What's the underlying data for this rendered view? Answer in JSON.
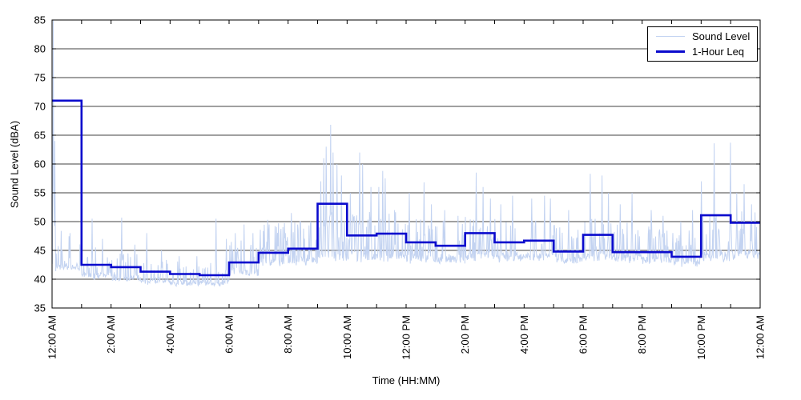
{
  "chart_data": {
    "type": "line",
    "title": "",
    "xlabel": "Time (HH:MM)",
    "ylabel": "Sound Level (dBA)",
    "ylim": [
      35,
      85
    ],
    "yticks": [
      35,
      40,
      45,
      50,
      55,
      60,
      65,
      70,
      75,
      80,
      85
    ],
    "x_span_hours": 24,
    "x_minor_tick_every_hours": 1,
    "x_major_label_every_hours": 2,
    "x_tick_labels": [
      "12:00 AM",
      "2:00 AM",
      "4:00 AM",
      "6:00 AM",
      "8:00 AM",
      "10:00 AM",
      "12:00 PM",
      "2:00 PM",
      "4:00 PM",
      "6:00 PM",
      "8:00 PM",
      "10:00 PM",
      "12:00 AM"
    ],
    "grid": "horizontal-only",
    "grid_color": "#000000",
    "axis_color": "#000000",
    "legend": {
      "position": "top-right",
      "border": true
    },
    "series": [
      {
        "name": "Sound Level",
        "type": "noisy-minute-trace",
        "color": "#c3d3f1",
        "points_per_hour": 60,
        "approx_hourly_floor_dba": [
          41.3,
          39.8,
          39.4,
          39.0,
          38.7,
          38.7,
          40.3,
          41.8,
          42.3,
          42.8,
          42.8,
          42.8,
          42.6,
          42.4,
          42.8,
          42.8,
          42.8,
          42.3,
          42.8,
          42.6,
          42.4,
          42.0,
          42.8,
          43.2
        ],
        "approx_hourly_spread_dba": [
          2.6,
          2.2,
          2.0,
          1.8,
          1.6,
          1.6,
          2.6,
          3.0,
          3.0,
          3.4,
          3.4,
          3.4,
          3.0,
          3.0,
          3.2,
          3.0,
          3.2,
          2.8,
          3.0,
          3.0,
          2.8,
          2.6,
          3.4,
          3.4
        ],
        "notable_peaks_hour_dba": [
          [
            0.03,
            85
          ],
          [
            0.08,
            64
          ],
          [
            0.6,
            48
          ],
          [
            1.35,
            50.5
          ],
          [
            1.7,
            47
          ],
          [
            2.35,
            50.7
          ],
          [
            2.8,
            46
          ],
          [
            3.2,
            48
          ],
          [
            3.7,
            45
          ],
          [
            4.3,
            44
          ],
          [
            4.9,
            44
          ],
          [
            5.55,
            50.5
          ],
          [
            5.9,
            47
          ],
          [
            6.2,
            48
          ],
          [
            6.5,
            49.5
          ],
          [
            6.8,
            48
          ],
          [
            7.3,
            50.3
          ],
          [
            7.6,
            49
          ],
          [
            7.9,
            48
          ],
          [
            8.1,
            51.5
          ],
          [
            8.4,
            50
          ],
          [
            8.75,
            50
          ],
          [
            9.1,
            57
          ],
          [
            9.2,
            61
          ],
          [
            9.28,
            63
          ],
          [
            9.43,
            66.8
          ],
          [
            9.52,
            62
          ],
          [
            9.65,
            60
          ],
          [
            9.8,
            58
          ],
          [
            10.1,
            55
          ],
          [
            10.42,
            62
          ],
          [
            10.52,
            60
          ],
          [
            10.8,
            56
          ],
          [
            11.07,
            56
          ],
          [
            11.2,
            58.8
          ],
          [
            11.28,
            57.5
          ],
          [
            11.6,
            52
          ],
          [
            12.1,
            55
          ],
          [
            12.6,
            56.8
          ],
          [
            12.85,
            53
          ],
          [
            13.3,
            52
          ],
          [
            13.75,
            51
          ],
          [
            14.37,
            58.5
          ],
          [
            14.6,
            56
          ],
          [
            14.85,
            54
          ],
          [
            15.2,
            53
          ],
          [
            15.6,
            54.5
          ],
          [
            16.25,
            54
          ],
          [
            16.68,
            54.5
          ],
          [
            16.88,
            54
          ],
          [
            17.2,
            49
          ],
          [
            17.5,
            52
          ],
          [
            18.24,
            58.3
          ],
          [
            18.64,
            58
          ],
          [
            18.85,
            55
          ],
          [
            19.25,
            53
          ],
          [
            19.65,
            55
          ],
          [
            20.3,
            52
          ],
          [
            20.7,
            51
          ],
          [
            21.3,
            50
          ],
          [
            21.7,
            52
          ],
          [
            22.0,
            57
          ],
          [
            22.44,
            63.6
          ],
          [
            22.98,
            63.7
          ],
          [
            23.2,
            55
          ],
          [
            23.45,
            56.5
          ],
          [
            23.7,
            53
          ]
        ]
      },
      {
        "name": "1-Hour Leq",
        "type": "hourly-step",
        "color": "#0b0bcd",
        "hourly_values": [
          71.0,
          42.5,
          42.1,
          41.3,
          40.9,
          40.7,
          42.9,
          44.6,
          45.3,
          53.1,
          47.6,
          47.9,
          46.4,
          45.8,
          48.0,
          46.4,
          46.7,
          44.8,
          47.7,
          44.7,
          44.7,
          43.9,
          51.1,
          49.8
        ]
      }
    ]
  }
}
